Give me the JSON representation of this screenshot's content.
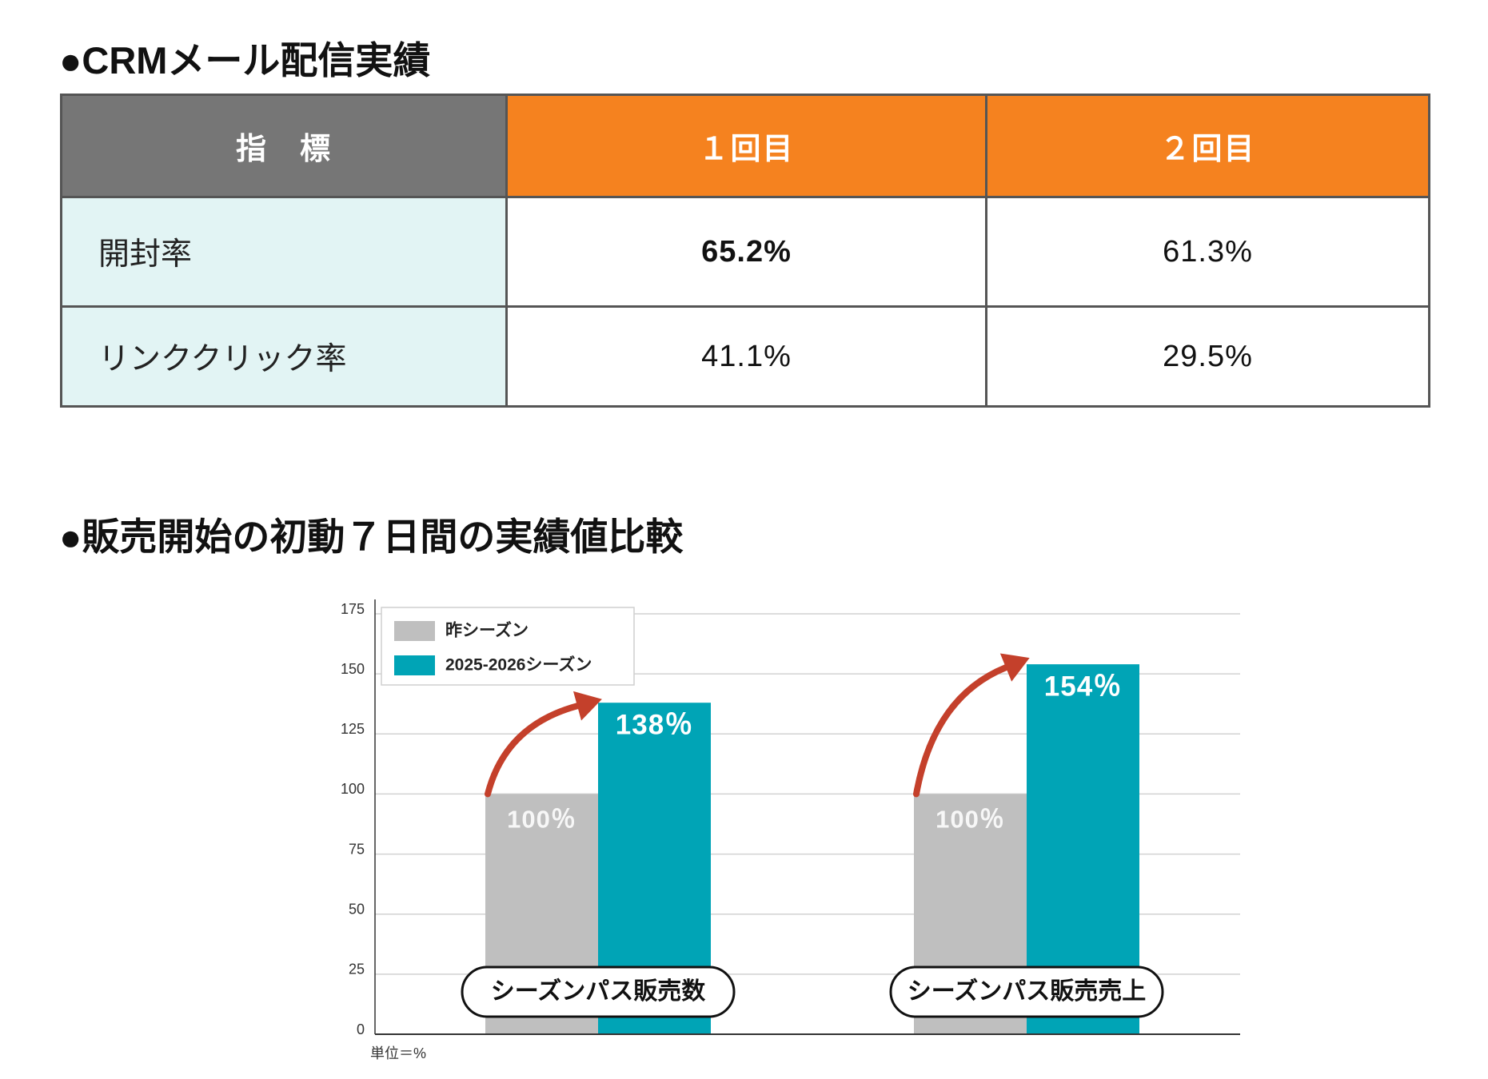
{
  "section_crm": {
    "title": "●CRMメール配信実績"
  },
  "table": {
    "headers": [
      "指　標",
      "１回目",
      "２回目"
    ],
    "rows": [
      {
        "label": "開封率",
        "values": [
          "65.2%",
          "61.3%"
        ]
      },
      {
        "label": "リンククリック率",
        "values": [
          "41.1%",
          "29.5%"
        ]
      }
    ]
  },
  "section_sales": {
    "title": "●販売開始の初動７日間の実績値比較"
  },
  "colors": {
    "header_gray": "#767676",
    "header_orange": "#F5821F",
    "row_label_bg": "#E2F4F4",
    "arrow": "#C4402B"
  },
  "chart_data": {
    "type": "bar",
    "categories": [
      "シーズンパス販売数",
      "シーズンパス販売売上"
    ],
    "series": [
      {
        "name": "昨シーズン",
        "values": [
          100,
          100
        ],
        "data_labels": [
          "100％",
          "100％"
        ],
        "color": "#BFBFBF"
      },
      {
        "name": "2025-2026シーズン",
        "values": [
          138,
          154
        ],
        "data_labels": [
          "138％",
          "154％"
        ],
        "color": "#00A4B6"
      }
    ],
    "ylim": [
      0,
      175
    ],
    "yticks": [
      0,
      25,
      50,
      75,
      100,
      125,
      150,
      175
    ],
    "unit_note": "単位＝%",
    "legend": "top-left",
    "grid": true
  }
}
